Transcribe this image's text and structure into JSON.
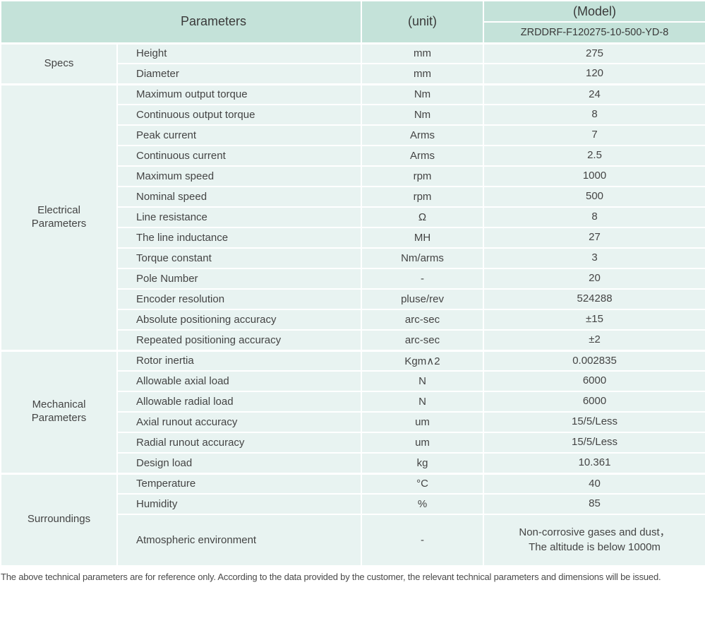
{
  "header": {
    "parameters_label": "Parameters",
    "unit_label": "(unit)",
    "model_label": "(Model)",
    "model_number": "ZRDDRF-F120275-10-500-YD-8"
  },
  "sections": [
    {
      "group": "Specs",
      "rows": [
        {
          "name": "Height",
          "unit": "mm",
          "value": "275"
        },
        {
          "name": "Diameter",
          "unit": "mm",
          "value": "120"
        }
      ]
    },
    {
      "group": "Electrical\nParameters",
      "rows": [
        {
          "name": "Maximum output torque",
          "unit": "Nm",
          "value": "24"
        },
        {
          "name": "Continuous output torque",
          "unit": "Nm",
          "value": "8"
        },
        {
          "name": "Peak current",
          "unit": "Arms",
          "value": "7"
        },
        {
          "name": "Continuous current",
          "unit": "Arms",
          "value": "2.5"
        },
        {
          "name": "Maximum speed",
          "unit": "rpm",
          "value": "1000"
        },
        {
          "name": "Nominal speed",
          "unit": "rpm",
          "value": "500"
        },
        {
          "name": "Line resistance",
          "unit": "Ω",
          "value": "8"
        },
        {
          "name": "The line inductance",
          "unit": "MH",
          "value": "27"
        },
        {
          "name": "Torque constant",
          "unit": "Nm/arms",
          "value": "3"
        },
        {
          "name": "Pole Number",
          "unit": "-",
          "value": "20"
        },
        {
          "name": "Encoder resolution",
          "unit": "pluse/rev",
          "value": "524288"
        },
        {
          "name": "Absolute positioning accuracy",
          "unit": "arc-sec",
          "value": "±15"
        },
        {
          "name": "Repeated positioning accuracy",
          "unit": "arc-sec",
          "value": "±2"
        }
      ]
    },
    {
      "group": "Mechanical\nParameters",
      "rows": [
        {
          "name": "Rotor inertia",
          "unit": "Kgm∧2",
          "value": "0.002835"
        },
        {
          "name": "Allowable axial load",
          "unit": "N",
          "value": "6000"
        },
        {
          "name": "Allowable radial load",
          "unit": "N",
          "value": "6000"
        },
        {
          "name": "Axial runout accuracy",
          "unit": "um",
          "value": "15/5/Less"
        },
        {
          "name": "Radial runout accuracy",
          "unit": "um",
          "value": "15/5/Less"
        },
        {
          "name": "Design load",
          "unit": "kg",
          "value": "10.361"
        }
      ]
    },
    {
      "group": "Surroundings",
      "rows": [
        {
          "name": "Temperature",
          "unit": "°C",
          "value": "40"
        },
        {
          "name": "Humidity",
          "unit": "%",
          "value": "85"
        },
        {
          "name": "Atmospheric environment",
          "unit": "-",
          "value": "Non-corrosive gases and dust，\nThe altitude is below 1000m",
          "tall": true
        }
      ]
    }
  ],
  "footer": {
    "note": "The above technical parameters are for reference only. According to the data provided by the customer, the relevant technical parameters and dimensions will be issued."
  },
  "colors": {
    "header_bg": "#c4e2d9",
    "cell_bg": "#e8f3f1",
    "text": "#444444"
  }
}
